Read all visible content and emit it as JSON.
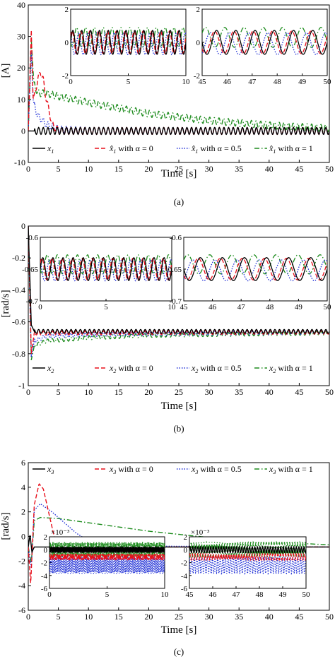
{
  "colors": {
    "x": "#000000",
    "alpha0": "#e8101c",
    "alpha05": "#1f2fd6",
    "alpha1": "#1e8c1e"
  },
  "chart_data": [
    {
      "type": "line",
      "panel_label": "(a)",
      "xlabel": "Time [s]",
      "ylabel": "[A]",
      "xlim": [
        0,
        50
      ],
      "ylim": [
        -10,
        40
      ],
      "xticks": [
        "0",
        "5",
        "10",
        "15",
        "20",
        "25",
        "30",
        "35",
        "40",
        "45",
        "50"
      ],
      "yticks": [
        "-10",
        "0",
        "10",
        "20",
        "30",
        "40"
      ],
      "grid": false,
      "legend": {
        "placement": "bottom",
        "entries": [
          {
            "math": "x",
            "sub": "1",
            "rest": ""
          },
          {
            "math": "x̂",
            "sub": "1",
            "rest": " with α = 0"
          },
          {
            "math": "x̂",
            "sub": "1",
            "rest": " with α = 0.5"
          },
          {
            "math": "x̂",
            "sub": "1",
            "rest": " with α = 1"
          }
        ]
      },
      "series": [
        {
          "key": "x",
          "style": "solid",
          "x": [
            0,
            0.5,
            1,
            2,
            5,
            10,
            20,
            30,
            40,
            50
          ],
          "y": [
            0,
            0,
            0,
            0,
            0,
            0,
            0,
            0,
            0,
            0
          ]
        },
        {
          "key": "alpha0",
          "style": "dashed",
          "x": [
            0,
            0.5,
            0.8,
            1.3,
            2,
            2.5,
            3,
            4,
            5,
            10,
            50
          ],
          "y": [
            0,
            32,
            10,
            14,
            19,
            16,
            10,
            2,
            0,
            0,
            0
          ]
        },
        {
          "key": "alpha05",
          "style": "dotted",
          "x": [
            0,
            0.5,
            0.8,
            1.5,
            3,
            5,
            10,
            50
          ],
          "y": [
            0,
            25,
            10,
            5,
            2,
            0.5,
            0,
            0
          ]
        },
        {
          "key": "alpha1",
          "style": "dashdot",
          "x": [
            0,
            0.5,
            0.9,
            1.5,
            3,
            5,
            10,
            20,
            30,
            40,
            50
          ],
          "y": [
            0,
            29,
            16,
            12,
            12,
            11,
            9,
            5.5,
            3.3,
            1.8,
            0.8
          ]
        }
      ],
      "insets": [
        {
          "xlim": [
            0,
            10
          ],
          "ylim": [
            -2,
            2
          ],
          "xticks": [
            "0",
            "5",
            "10"
          ],
          "yticks": [
            "-2",
            "0",
            "2"
          ]
        },
        {
          "xlim": [
            45,
            50
          ],
          "ylim": [
            -2,
            2
          ],
          "xticks": [
            "45",
            "46",
            "47",
            "48",
            "49",
            "50"
          ],
          "yticks": [
            "-2",
            "0",
            "2"
          ]
        }
      ]
    },
    {
      "type": "line",
      "panel_label": "(b)",
      "xlabel": "Time [s]",
      "ylabel": "[rad/s]",
      "xlim": [
        0,
        50
      ],
      "ylim": [
        -1,
        0
      ],
      "xticks": [
        "0",
        "5",
        "10",
        "15",
        "20",
        "25",
        "30",
        "35",
        "40",
        "45",
        "50"
      ],
      "yticks": [
        "-1",
        "-0.8",
        "-0.6",
        "-0.4",
        "-0.2",
        "0"
      ],
      "grid": false,
      "legend": {
        "placement": "bottom",
        "entries": [
          {
            "math": "x",
            "sub": "2",
            "rest": ""
          },
          {
            "math": "x",
            "sub": "2",
            "rest": " with α = 0"
          },
          {
            "math": "x",
            "sub": "2",
            "rest": " with α = 0.5"
          },
          {
            "math": "x",
            "sub": "2",
            "rest": " with α = 1"
          }
        ]
      },
      "series": [
        {
          "key": "x",
          "style": "solid",
          "x": [
            0,
            0.5,
            1,
            50
          ],
          "y": [
            0,
            -0.62,
            -0.66,
            -0.66
          ]
        },
        {
          "key": "alpha0",
          "style": "dashed",
          "x": [
            0,
            0.5,
            1,
            50
          ],
          "y": [
            0,
            -0.8,
            -0.67,
            -0.665
          ]
        },
        {
          "key": "alpha05",
          "style": "dotted",
          "x": [
            0,
            0.5,
            1,
            3,
            10,
            50
          ],
          "y": [
            0,
            -0.82,
            -0.72,
            -0.69,
            -0.68,
            -0.665
          ]
        },
        {
          "key": "alpha1",
          "style": "dashdot",
          "x": [
            0,
            0.5,
            1,
            3,
            10,
            20,
            50
          ],
          "y": [
            0,
            -0.84,
            -0.75,
            -0.72,
            -0.7,
            -0.685,
            -0.67
          ]
        }
      ],
      "insets": [
        {
          "xlim": [
            0,
            10
          ],
          "ylim": [
            -0.7,
            -0.6
          ],
          "xticks": [
            "0",
            "5",
            "10"
          ],
          "yticks": [
            "-0.7",
            "-0.65",
            "-0.6"
          ]
        },
        {
          "xlim": [
            45,
            50
          ],
          "ylim": [
            -0.7,
            -0.6
          ],
          "xticks": [
            "45",
            "46",
            "47",
            "48",
            "49",
            "50"
          ],
          "yticks": [
            "-0.7",
            "-0.65",
            "-0.6"
          ]
        }
      ]
    },
    {
      "type": "line",
      "panel_label": "(c)",
      "xlabel": "Time [s]",
      "ylabel": "[rad/s]",
      "xlim": [
        0,
        50
      ],
      "ylim": [
        -6,
        8
      ],
      "xticks": [
        "0",
        "5",
        "10",
        "15",
        "20",
        "25",
        "30",
        "35",
        "40",
        "45",
        "50"
      ],
      "yticks": [
        "-6",
        "-4",
        "-2",
        "0",
        "2",
        "4",
        "6"
      ],
      "grid": false,
      "legend": {
        "placement": "top",
        "entries": [
          {
            "math": "x",
            "sub": "3",
            "rest": ""
          },
          {
            "math": "x",
            "sub": "3",
            "rest": " with α = 0"
          },
          {
            "math": "x",
            "sub": "3",
            "rest": " with α = 0.5"
          },
          {
            "math": "x",
            "sub": "3",
            "rest": " with α = 1"
          }
        ]
      },
      "series": [
        {
          "key": "x",
          "style": "solid",
          "x": [
            0,
            0.3,
            0.6,
            1,
            50
          ],
          "y": [
            0,
            1.2,
            -0.5,
            0,
            0
          ]
        },
        {
          "key": "alpha0",
          "style": "dashed",
          "x": [
            0,
            0.4,
            1,
            1.8,
            2.5,
            3.5,
            4.5,
            5,
            50
          ],
          "y": [
            0,
            -3.5,
            4,
            6,
            5.5,
            3,
            0.5,
            0,
            0
          ]
        },
        {
          "key": "alpha05",
          "style": "dotted",
          "x": [
            0,
            0.5,
            1,
            2,
            4,
            6,
            8,
            10,
            14,
            50
          ],
          "y": [
            0,
            -2,
            3.5,
            4.1,
            3.3,
            2.3,
            1.3,
            0.6,
            0.1,
            0
          ]
        },
        {
          "key": "alpha1",
          "style": "dashdot",
          "x": [
            0,
            0.5,
            1,
            2,
            5,
            10,
            20,
            30,
            40,
            50
          ],
          "y": [
            0,
            -1.5,
            2.5,
            2.8,
            2.7,
            2.3,
            1.5,
            0.9,
            0.5,
            0.2
          ]
        }
      ],
      "insets": [
        {
          "xlim": [
            0,
            10
          ],
          "ylim": [
            -6,
            2
          ],
          "exponent": "×10⁻³",
          "xticks": [
            "0",
            "5",
            "10"
          ],
          "yticks": [
            "-6",
            "-4",
            "-2",
            "0",
            "2"
          ]
        },
        {
          "xlim": [
            45,
            50
          ],
          "ylim": [
            -6,
            2
          ],
          "exponent": "×10⁻³",
          "xticks": [
            "45",
            "46",
            "47",
            "48",
            "49",
            "50"
          ],
          "yticks": [
            "-6",
            "-4",
            "-2",
            "0",
            "2"
          ]
        }
      ]
    }
  ]
}
